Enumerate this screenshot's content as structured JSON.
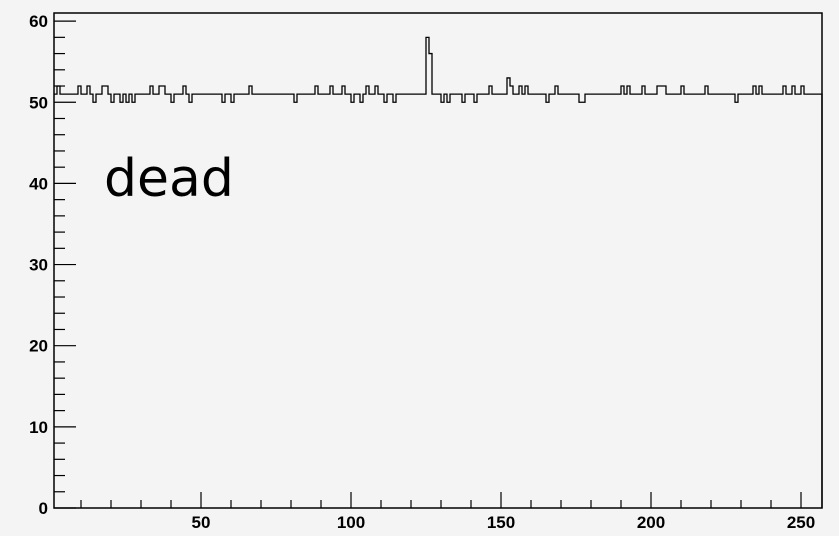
{
  "chart_data": {
    "type": "line",
    "style": "step-histogram",
    "annotation": "dead",
    "xlim": [
      1,
      256
    ],
    "ylim": [
      0,
      61
    ],
    "x_major_ticks": [
      50,
      100,
      150,
      200,
      250
    ],
    "x_tick_labels": [
      "50",
      "100",
      "150",
      "200",
      "250"
    ],
    "y_major_ticks": [
      0,
      10,
      20,
      30,
      40,
      50,
      60
    ],
    "y_tick_labels": [
      "0",
      "10",
      "20",
      "30",
      "40",
      "50",
      "60"
    ],
    "grid": false,
    "legend": "none",
    "colors": {
      "background": "#f4f4f4",
      "line": "#000000",
      "axis": "#000000"
    },
    "series": [
      {
        "values": [
          51,
          52,
          51,
          51,
          51,
          51,
          51,
          51,
          52,
          51,
          51,
          52,
          51,
          50,
          51,
          51,
          52,
          52,
          51,
          50,
          51,
          51,
          50,
          51,
          50,
          51,
          50,
          51,
          51,
          51,
          51,
          51,
          52,
          51,
          51,
          52,
          52,
          51,
          51,
          50,
          51,
          51,
          51,
          52,
          51,
          50,
          51,
          51,
          51,
          51,
          51,
          51,
          51,
          51,
          51,
          51,
          50,
          51,
          51,
          50,
          51,
          51,
          51,
          51,
          51,
          52,
          51,
          51,
          51,
          51,
          51,
          51,
          51,
          51,
          51,
          51,
          51,
          51,
          51,
          51,
          50,
          51,
          51,
          51,
          51,
          51,
          51,
          52,
          51,
          51,
          51,
          51,
          52,
          51,
          51,
          51,
          52,
          51,
          51,
          50,
          51,
          51,
          50,
          51,
          52,
          51,
          51,
          52,
          51,
          51,
          50,
          51,
          51,
          50,
          51,
          51,
          51,
          51,
          51,
          51,
          51,
          51,
          51,
          51,
          58,
          56,
          51,
          51,
          51,
          50,
          51,
          50,
          51,
          51,
          51,
          51,
          50,
          51,
          51,
          51,
          50,
          51,
          51,
          51,
          51,
          52,
          51,
          51,
          51,
          51,
          51,
          53,
          52,
          51,
          51,
          52,
          51,
          52,
          51,
          51,
          51,
          51,
          51,
          51,
          50,
          51,
          51,
          52,
          51,
          51,
          51,
          51,
          51,
          51,
          51,
          50,
          50,
          51,
          51,
          51,
          51,
          51,
          51,
          51,
          51,
          51,
          51,
          51,
          51,
          52,
          51,
          52,
          51,
          51,
          51,
          51,
          52,
          51,
          51,
          51,
          51,
          52,
          52,
          52,
          51,
          51,
          51,
          51,
          51,
          52,
          51,
          51,
          51,
          51,
          51,
          51,
          51,
          52,
          51,
          51,
          51,
          51,
          51,
          51,
          51,
          51,
          51,
          50,
          51,
          51,
          51,
          51,
          51,
          52,
          51,
          52,
          51,
          51,
          51,
          51,
          51,
          51,
          51,
          52,
          51,
          51,
          52,
          51,
          51,
          52,
          51,
          51,
          51,
          51,
          51,
          51
        ]
      }
    ]
  }
}
